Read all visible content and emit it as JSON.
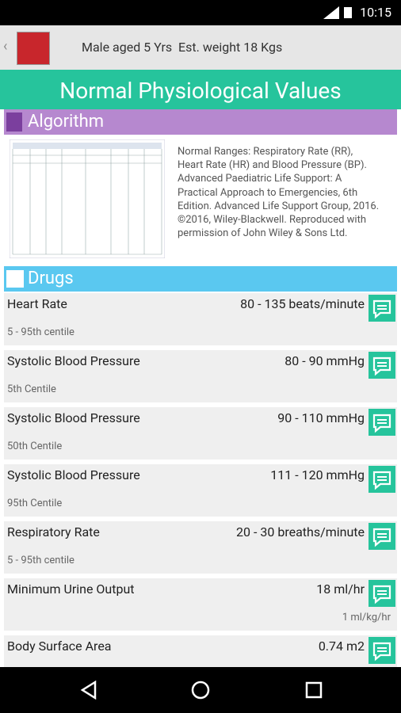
{
  "status_bar": {
    "time": "10:15"
  },
  "header": {
    "patient": "Male aged 5 Yrs  Est. weight 18 Kgs"
  },
  "title": "Normal Physiological Values",
  "algorithm": {
    "title": "Algorithm",
    "citation": "Normal Ranges: Respiratory Rate (RR), Heart Rate (HR) and Blood Pressure (BP). Advanced Paediatric Life Support: A Practical Approach to Emergencies, 6th Edition. Advanced Life Support Group, 2016. ©2016, Wiley-Blackwell. Reproduced with permission of John Wiley & Sons Ltd."
  },
  "drugs": {
    "title": "Drugs",
    "items": [
      {
        "name": "Heart Rate",
        "value": "80 - 135 beats/minute",
        "note": "5 - 95th centile"
      },
      {
        "name": "Systolic Blood Pressure",
        "value": "80 - 90 mmHg",
        "note": "5th Centile"
      },
      {
        "name": "Systolic Blood Pressure",
        "value": "90 - 110 mmHg",
        "note": "50th Centile"
      },
      {
        "name": "Systolic Blood Pressure",
        "value": "111 - 120 mmHg",
        "note": "95th Centile"
      },
      {
        "name": "Respiratory Rate",
        "value": "20 - 30 breaths/minute",
        "note": "5 - 95th centile"
      },
      {
        "name": "Minimum Urine Output",
        "value": "18 ml/hr",
        "sub_value": "1 ml/kg/hr"
      },
      {
        "name": "Body Surface Area",
        "value": "0.74 m2"
      }
    ]
  }
}
